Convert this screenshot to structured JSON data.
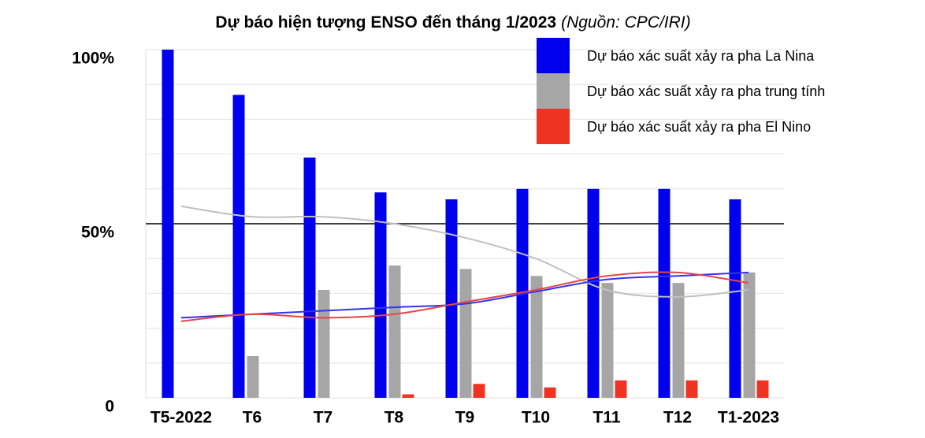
{
  "chart_data": {
    "type": "bar",
    "title": "Dự báo hiện tượng ENSO đến tháng 1/2023",
    "source": "(Nguồn: CPC/IRI)",
    "categories": [
      "T5-2022",
      "T6",
      "T7",
      "T8",
      "T9",
      "T10",
      "T11",
      "T12",
      "T1-2023"
    ],
    "series": [
      {
        "name": "Dự báo xác suất xảy ra pha La Nina",
        "color": "#0000ee",
        "values": [
          100,
          87,
          69,
          59,
          57,
          60,
          60,
          60,
          57
        ]
      },
      {
        "name": "Dự báo xác suất xảy ra pha trung tính",
        "color": "#a6a6a6",
        "values": [
          null,
          12,
          31,
          38,
          37,
          35,
          33,
          33,
          36
        ]
      },
      {
        "name": "Dự báo xác suất xảy ra pha El Nino",
        "color": "#ee3322",
        "values": [
          null,
          null,
          null,
          1,
          4,
          3,
          5,
          5,
          5
        ]
      }
    ],
    "trend_lines": [
      {
        "color": "#c0c0c0",
        "values": [
          55,
          52,
          52,
          50,
          46,
          40,
          31,
          29,
          31
        ]
      },
      {
        "color": "#3333ee",
        "values": [
          23,
          24,
          25,
          26,
          27,
          30.5,
          34,
          35,
          36
        ]
      },
      {
        "color": "#e84444",
        "values": [
          22,
          24,
          23,
          24,
          27.5,
          31,
          35,
          36,
          33
        ]
      }
    ],
    "ylim": [
      0,
      100
    ],
    "yticks": [
      {
        "value": 0,
        "label": "0"
      },
      {
        "value": 50,
        "label": "50%"
      },
      {
        "value": 100,
        "label": "100%"
      }
    ],
    "minor_grid": [
      10,
      20,
      30,
      40,
      60,
      70,
      80,
      90
    ],
    "reference_line": 50,
    "grid": true,
    "legend": "upper right"
  }
}
